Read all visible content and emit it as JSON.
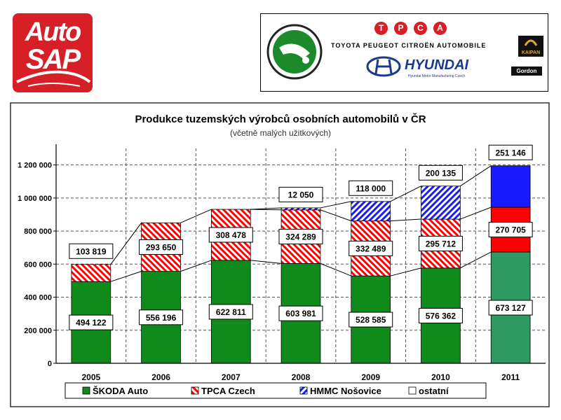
{
  "logos": {
    "autosap": {
      "line1": "Auto",
      "line2": "SAP"
    },
    "tpca": {
      "letters": [
        "T",
        "P",
        "C",
        "A"
      ],
      "subtitle": "TOYOTA PEUGEOT CITROËN AUTOMOBILE"
    },
    "hyundai": {
      "word": "HYUNDAI",
      "subtitle": "Hyundai Motor Manufacturing Czech"
    },
    "kaipan": "KAIPAN",
    "gordon": "Gordon"
  },
  "colors": {
    "skoda": "#118a1c",
    "tpca": "#ff0000",
    "hmmc": "#1a1aff",
    "ostatni": "#ffffff",
    "skoda_2011": "#2e9a62"
  },
  "chart_data": {
    "type": "bar",
    "stacked": true,
    "title": "Produkce tuzemských výrobců osobních automobilů v ČR",
    "subtitle": "(včetně malých užitkových)",
    "categories": [
      "2005",
      "2006",
      "2007",
      "2008",
      "2009",
      "2010",
      "2011"
    ],
    "series": [
      {
        "name": "ŠKODA Auto",
        "values": [
          494122,
          556196,
          622811,
          603981,
          528585,
          576362,
          673127
        ]
      },
      {
        "name": "TPCA Czech",
        "values": [
          103819,
          293650,
          308478,
          324289,
          332489,
          295712,
          270705
        ]
      },
      {
        "name": "HMMC Nošovice",
        "values": [
          0,
          0,
          0,
          12050,
          118000,
          200135,
          251146
        ]
      },
      {
        "name": "ostatní",
        "values": [
          0,
          0,
          0,
          0,
          0,
          0,
          0
        ]
      }
    ],
    "bar_labels": [
      {
        "category": "2005",
        "labels": [
          "494 122",
          "103 819"
        ]
      },
      {
        "category": "2006",
        "labels": [
          "556 196",
          "293 650"
        ]
      },
      {
        "category": "2007",
        "labels": [
          "622 811",
          "308 478"
        ]
      },
      {
        "category": "2008",
        "labels": [
          "603 981",
          "324 289",
          "12 050"
        ]
      },
      {
        "category": "2009",
        "labels": [
          "528 585",
          "332 489",
          "118 000"
        ]
      },
      {
        "category": "2010",
        "labels": [
          "576 362",
          "295 712",
          "200 135"
        ]
      },
      {
        "category": "2011",
        "labels": [
          "673 127",
          "270 705",
          "251 146"
        ]
      }
    ],
    "ylim": [
      0,
      1300000
    ],
    "yticks": [
      0,
      200000,
      400000,
      600000,
      800000,
      1000000,
      1200000
    ],
    "ytick_labels": [
      "0",
      "200 000",
      "400 000",
      "600 000",
      "800 000",
      "1 000 000",
      "1 200 000"
    ],
    "grid": true,
    "legend_position": "bottom"
  }
}
